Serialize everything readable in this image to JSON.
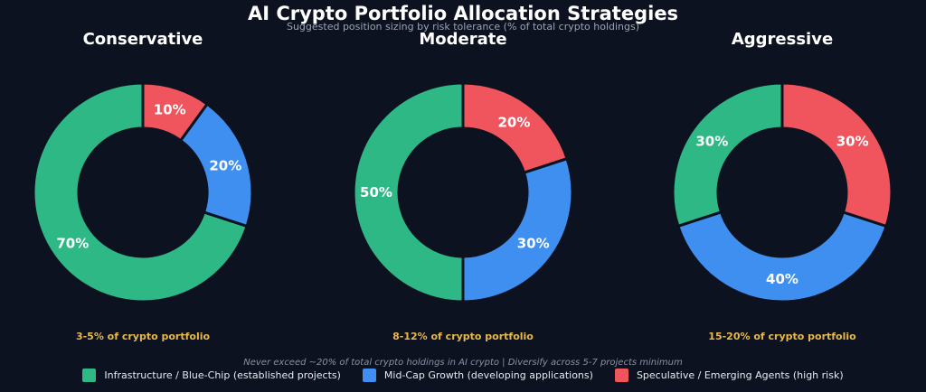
{
  "title": "AI Crypto Portfolio Allocation Strategies",
  "subtitle": "Suggested position sizing by risk tolerance (% of total crypto holdings)",
  "footnote": "Never exceed ~20% of total crypto holdings in AI crypto  |  Diversify across 5-7 projects minimum",
  "colors": {
    "background": "#0d1220",
    "infrastructure": "#2eb886",
    "midcap": "#3f8ff0",
    "speculative": "#f0555e",
    "note": "#e8b84a"
  },
  "legend": [
    {
      "label": "Infrastructure / Blue-Chip (established projects)",
      "color": "#2eb886"
    },
    {
      "label": "Mid-Cap Growth (developing applications)",
      "color": "#3f8ff0"
    },
    {
      "label": "Speculative / Emerging Agents (high risk)",
      "color": "#f0555e"
    }
  ],
  "chart_data": [
    {
      "type": "pie",
      "title": "Conservative",
      "note": "3-5% of crypto portfolio",
      "categories": [
        "Infrastructure / Blue-Chip (established projects)",
        "Mid-Cap Growth (developing applications)",
        "Speculative / Emerging Agents (high risk)"
      ],
      "values": [
        70,
        20,
        10
      ],
      "labels": [
        "70%",
        "20%",
        "10%"
      ]
    },
    {
      "type": "pie",
      "title": "Moderate",
      "note": "8-12% of crypto portfolio",
      "categories": [
        "Infrastructure / Blue-Chip (established projects)",
        "Mid-Cap Growth (developing applications)",
        "Speculative / Emerging Agents (high risk)"
      ],
      "values": [
        50,
        30,
        20
      ],
      "labels": [
        "50%",
        "30%",
        "20%"
      ]
    },
    {
      "type": "pie",
      "title": "Aggressive",
      "note": "15-20% of crypto portfolio",
      "categories": [
        "Infrastructure / Blue-Chip (established projects)",
        "Mid-Cap Growth (developing applications)",
        "Speculative / Emerging Agents (high risk)"
      ],
      "values": [
        30,
        40,
        30
      ],
      "labels": [
        "30%",
        "40%",
        "30%"
      ]
    }
  ]
}
